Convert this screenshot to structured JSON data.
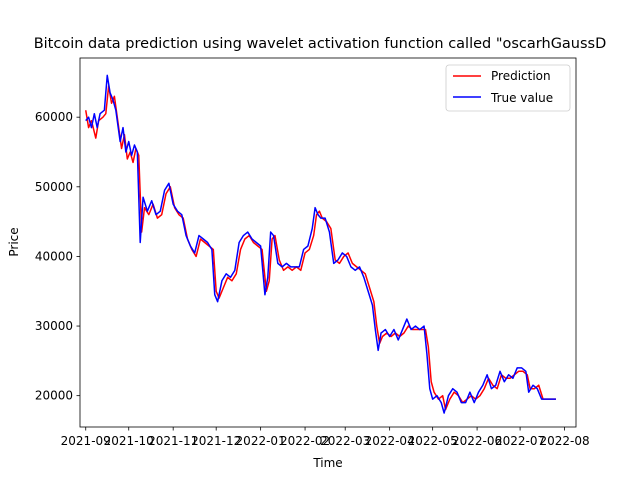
{
  "chart_data": {
    "type": "line",
    "title": "Bitcoin data prediction using wavelet activation function called \"oscarhGaussD",
    "xlabel": "Time",
    "ylabel": "Price",
    "xlim": [
      "2021-08-28",
      "2022-08-09"
    ],
    "ylim": [
      15500,
      68500
    ],
    "x_ticks": [
      "2021-09",
      "2021-10",
      "2021-11",
      "2021-12",
      "2022-01",
      "2022-02",
      "2022-03",
      "2022-04",
      "2022-05",
      "2022-06",
      "2022-07",
      "2022-08"
    ],
    "y_ticks": [
      20000,
      30000,
      40000,
      50000,
      60000
    ],
    "legend": {
      "position": "top-right",
      "entries": [
        "Prediction",
        "True value"
      ]
    },
    "grid": false,
    "series": [
      {
        "name": "Prediction",
        "color": "#ff0000",
        "points": [
          [
            "2021-09-01",
            61000
          ],
          [
            "2021-09-03",
            58500
          ],
          [
            "2021-09-05",
            59500
          ],
          [
            "2021-09-08",
            57000
          ],
          [
            "2021-09-10",
            59500
          ],
          [
            "2021-09-13",
            60000
          ],
          [
            "2021-09-15",
            60500
          ],
          [
            "2021-09-17",
            64500
          ],
          [
            "2021-09-19",
            62000
          ],
          [
            "2021-09-21",
            63000
          ],
          [
            "2021-09-23",
            60000
          ],
          [
            "2021-09-26",
            55500
          ],
          [
            "2021-09-28",
            57500
          ],
          [
            "2021-09-30",
            54000
          ],
          [
            "2021-10-02",
            55000
          ],
          [
            "2021-10-04",
            53500
          ],
          [
            "2021-10-06",
            55500
          ],
          [
            "2021-10-08",
            54500
          ],
          [
            "2021-10-10",
            43500
          ],
          [
            "2021-10-12",
            47000
          ],
          [
            "2021-10-15",
            46000
          ],
          [
            "2021-10-18",
            47500
          ],
          [
            "2021-10-21",
            45500
          ],
          [
            "2021-10-24",
            46000
          ],
          [
            "2021-10-27",
            49000
          ],
          [
            "2021-10-30",
            50000
          ],
          [
            "2021-11-02",
            47000
          ],
          [
            "2021-11-05",
            46000
          ],
          [
            "2021-11-08",
            45500
          ],
          [
            "2021-11-11",
            42500
          ],
          [
            "2021-11-14",
            41000
          ],
          [
            "2021-11-17",
            40000
          ],
          [
            "2021-11-20",
            42500
          ],
          [
            "2021-11-23",
            42000
          ],
          [
            "2021-11-26",
            41500
          ],
          [
            "2021-11-29",
            41000
          ],
          [
            "2021-12-01",
            35000
          ],
          [
            "2021-12-03",
            34000
          ],
          [
            "2021-12-06",
            35500
          ],
          [
            "2021-12-09",
            37000
          ],
          [
            "2021-12-12",
            36500
          ],
          [
            "2021-12-15",
            37500
          ],
          [
            "2021-12-18",
            41000
          ],
          [
            "2021-12-21",
            42500
          ],
          [
            "2021-12-24",
            43000
          ],
          [
            "2021-12-27",
            42000
          ],
          [
            "2021-12-30",
            41500
          ],
          [
            "2022-01-02",
            41000
          ],
          [
            "2022-01-05",
            35000
          ],
          [
            "2022-01-07",
            36500
          ],
          [
            "2022-01-09",
            42500
          ],
          [
            "2022-01-11",
            43000
          ],
          [
            "2022-01-14",
            39500
          ],
          [
            "2022-01-17",
            38000
          ],
          [
            "2022-01-20",
            38500
          ],
          [
            "2022-01-23",
            38000
          ],
          [
            "2022-01-26",
            38500
          ],
          [
            "2022-01-29",
            38000
          ],
          [
            "2022-02-01",
            40500
          ],
          [
            "2022-02-04",
            41000
          ],
          [
            "2022-02-07",
            43000
          ],
          [
            "2022-02-09",
            46000
          ],
          [
            "2022-02-11",
            46500
          ],
          [
            "2022-02-13",
            45500
          ],
          [
            "2022-02-16",
            45000
          ],
          [
            "2022-02-19",
            44000
          ],
          [
            "2022-02-22",
            39500
          ],
          [
            "2022-02-25",
            39000
          ],
          [
            "2022-02-28",
            40000
          ],
          [
            "2022-03-03",
            40500
          ],
          [
            "2022-03-06",
            39000
          ],
          [
            "2022-03-09",
            38500
          ],
          [
            "2022-03-12",
            38000
          ],
          [
            "2022-03-15",
            37500
          ],
          [
            "2022-03-18",
            35500
          ],
          [
            "2022-03-21",
            33500
          ],
          [
            "2022-03-23",
            30000
          ],
          [
            "2022-03-25",
            27500
          ],
          [
            "2022-03-27",
            28500
          ],
          [
            "2022-03-30",
            29000
          ],
          [
            "2022-04-02",
            28500
          ],
          [
            "2022-04-05",
            29000
          ],
          [
            "2022-04-08",
            28500
          ],
          [
            "2022-04-11",
            29000
          ],
          [
            "2022-04-14",
            30000
          ],
          [
            "2022-04-17",
            29500
          ],
          [
            "2022-04-20",
            29500
          ],
          [
            "2022-04-23",
            29500
          ],
          [
            "2022-04-26",
            29500
          ],
          [
            "2022-04-28",
            27000
          ],
          [
            "2022-04-30",
            22000
          ],
          [
            "2022-05-02",
            20500
          ],
          [
            "2022-05-05",
            19500
          ],
          [
            "2022-05-08",
            20000
          ],
          [
            "2022-05-10",
            18000
          ],
          [
            "2022-05-13",
            19500
          ],
          [
            "2022-05-16",
            20500
          ],
          [
            "2022-05-19",
            20000
          ],
          [
            "2022-05-22",
            19000
          ],
          [
            "2022-05-25",
            19500
          ],
          [
            "2022-05-28",
            20000
          ],
          [
            "2022-05-31",
            19500
          ],
          [
            "2022-06-03",
            20000
          ],
          [
            "2022-06-06",
            21000
          ],
          [
            "2022-06-09",
            22500
          ],
          [
            "2022-06-12",
            21500
          ],
          [
            "2022-06-15",
            21000
          ],
          [
            "2022-06-18",
            23000
          ],
          [
            "2022-06-21",
            22500
          ],
          [
            "2022-06-24",
            22500
          ],
          [
            "2022-06-27",
            23000
          ],
          [
            "2022-06-30",
            23500
          ],
          [
            "2022-07-03",
            23500
          ],
          [
            "2022-07-06",
            23000
          ],
          [
            "2022-07-08",
            21000
          ],
          [
            "2022-07-11",
            21000
          ],
          [
            "2022-07-14",
            21500
          ],
          [
            "2022-07-17",
            19500
          ],
          [
            "2022-07-20",
            19500
          ],
          [
            "2022-07-23",
            19500
          ],
          [
            "2022-07-26",
            19500
          ]
        ]
      },
      {
        "name": "True value",
        "color": "#0000ff",
        "points": [
          [
            "2021-09-01",
            59500
          ],
          [
            "2021-09-03",
            60000
          ],
          [
            "2021-09-05",
            58500
          ],
          [
            "2021-09-07",
            60500
          ],
          [
            "2021-09-09",
            58500
          ],
          [
            "2021-09-11",
            60500
          ],
          [
            "2021-09-14",
            61000
          ],
          [
            "2021-09-16",
            66000
          ],
          [
            "2021-09-18",
            63500
          ],
          [
            "2021-09-20",
            62500
          ],
          [
            "2021-09-22",
            61000
          ],
          [
            "2021-09-25",
            56500
          ],
          [
            "2021-09-27",
            58500
          ],
          [
            "2021-09-29",
            55000
          ],
          [
            "2021-10-01",
            56500
          ],
          [
            "2021-10-03",
            54500
          ],
          [
            "2021-10-05",
            56000
          ],
          [
            "2021-10-07",
            55000
          ],
          [
            "2021-10-09",
            42000
          ],
          [
            "2021-10-11",
            48500
          ],
          [
            "2021-10-14",
            46500
          ],
          [
            "2021-10-17",
            48000
          ],
          [
            "2021-10-20",
            46000
          ],
          [
            "2021-10-23",
            46500
          ],
          [
            "2021-10-26",
            49500
          ],
          [
            "2021-10-29",
            50500
          ],
          [
            "2021-11-01",
            47500
          ],
          [
            "2021-11-04",
            46500
          ],
          [
            "2021-11-07",
            46000
          ],
          [
            "2021-11-10",
            43000
          ],
          [
            "2021-11-13",
            41500
          ],
          [
            "2021-11-16",
            40500
          ],
          [
            "2021-11-19",
            43000
          ],
          [
            "2021-11-22",
            42500
          ],
          [
            "2021-11-25",
            42000
          ],
          [
            "2021-11-28",
            41000
          ],
          [
            "2021-11-30",
            34500
          ],
          [
            "2021-12-02",
            33500
          ],
          [
            "2021-12-05",
            36500
          ],
          [
            "2021-12-08",
            37500
          ],
          [
            "2021-12-11",
            37000
          ],
          [
            "2021-12-14",
            38000
          ],
          [
            "2021-12-17",
            42000
          ],
          [
            "2021-12-20",
            43000
          ],
          [
            "2021-12-23",
            43500
          ],
          [
            "2021-12-26",
            42500
          ],
          [
            "2021-12-29",
            42000
          ],
          [
            "2022-01-01",
            41500
          ],
          [
            "2022-01-04",
            34500
          ],
          [
            "2022-01-06",
            37000
          ],
          [
            "2022-01-08",
            43500
          ],
          [
            "2022-01-10",
            43000
          ],
          [
            "2022-01-13",
            39000
          ],
          [
            "2022-01-16",
            38500
          ],
          [
            "2022-01-19",
            39000
          ],
          [
            "2022-01-22",
            38500
          ],
          [
            "2022-01-25",
            38500
          ],
          [
            "2022-01-28",
            38500
          ],
          [
            "2022-01-31",
            41000
          ],
          [
            "2022-02-03",
            41500
          ],
          [
            "2022-02-06",
            44000
          ],
          [
            "2022-02-08",
            47000
          ],
          [
            "2022-02-10",
            46000
          ],
          [
            "2022-02-12",
            45500
          ],
          [
            "2022-02-15",
            45500
          ],
          [
            "2022-02-18",
            43500
          ],
          [
            "2022-02-21",
            39000
          ],
          [
            "2022-02-24",
            39500
          ],
          [
            "2022-02-27",
            40500
          ],
          [
            "2022-03-02",
            40000
          ],
          [
            "2022-03-05",
            38500
          ],
          [
            "2022-03-08",
            38000
          ],
          [
            "2022-03-11",
            38500
          ],
          [
            "2022-03-14",
            37000
          ],
          [
            "2022-03-17",
            35000
          ],
          [
            "2022-03-20",
            33000
          ],
          [
            "2022-03-22",
            29500
          ],
          [
            "2022-03-24",
            26500
          ],
          [
            "2022-03-26",
            29000
          ],
          [
            "2022-03-29",
            29500
          ],
          [
            "2022-04-01",
            28500
          ],
          [
            "2022-04-04",
            29500
          ],
          [
            "2022-04-07",
            28000
          ],
          [
            "2022-04-10",
            29500
          ],
          [
            "2022-04-13",
            31000
          ],
          [
            "2022-04-16",
            29500
          ],
          [
            "2022-04-19",
            30000
          ],
          [
            "2022-04-22",
            29500
          ],
          [
            "2022-04-25",
            30000
          ],
          [
            "2022-04-27",
            26000
          ],
          [
            "2022-04-29",
            21000
          ],
          [
            "2022-05-01",
            19500
          ],
          [
            "2022-05-04",
            20000
          ],
          [
            "2022-05-07",
            19000
          ],
          [
            "2022-05-09",
            17500
          ],
          [
            "2022-05-12",
            20000
          ],
          [
            "2022-05-15",
            21000
          ],
          [
            "2022-05-18",
            20500
          ],
          [
            "2022-05-21",
            19000
          ],
          [
            "2022-05-24",
            19000
          ],
          [
            "2022-05-27",
            20500
          ],
          [
            "2022-05-30",
            19000
          ],
          [
            "2022-06-02",
            20500
          ],
          [
            "2022-06-05",
            21500
          ],
          [
            "2022-06-08",
            23000
          ],
          [
            "2022-06-11",
            21000
          ],
          [
            "2022-06-14",
            21500
          ],
          [
            "2022-06-17",
            23500
          ],
          [
            "2022-06-20",
            22000
          ],
          [
            "2022-06-23",
            23000
          ],
          [
            "2022-06-26",
            22500
          ],
          [
            "2022-06-29",
            24000
          ],
          [
            "2022-07-02",
            24000
          ],
          [
            "2022-07-05",
            23500
          ],
          [
            "2022-07-07",
            20500
          ],
          [
            "2022-07-10",
            21500
          ],
          [
            "2022-07-13",
            21000
          ],
          [
            "2022-07-16",
            19500
          ],
          [
            "2022-07-19",
            19500
          ],
          [
            "2022-07-22",
            19500
          ],
          [
            "2022-07-26",
            19500
          ]
        ]
      }
    ]
  }
}
